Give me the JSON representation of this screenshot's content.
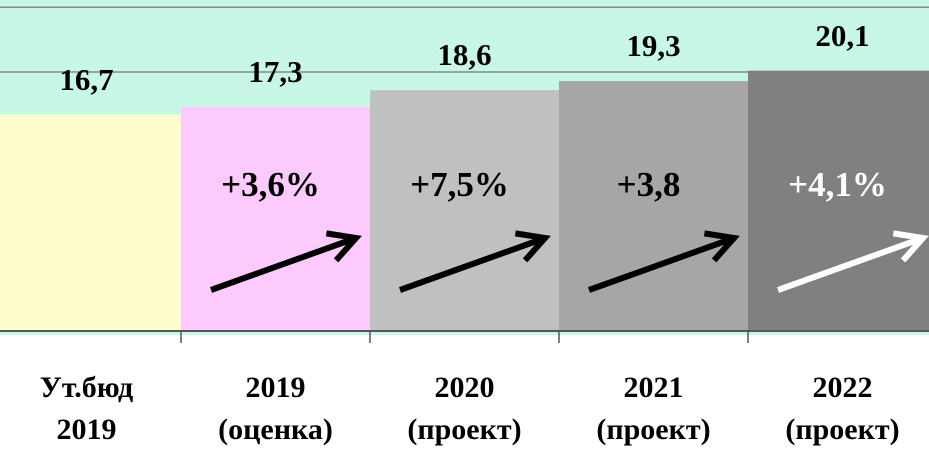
{
  "chart_data": {
    "type": "bar",
    "categories": [
      "Ут.бюд\n2019",
      "2019\n(оценка)",
      "2020\n(проект)",
      "2021\n(проект)",
      "2022\n(проект)"
    ],
    "values": [
      16.7,
      17.3,
      18.6,
      19.3,
      20.1
    ],
    "value_labels": [
      "16,7",
      "17,3",
      "18,6",
      "19,3",
      "20,1"
    ],
    "colors": [
      "#fdfccc",
      "#fccafc",
      "#c0c0c0",
      "#a6a6a6",
      "#808080"
    ],
    "annotations": [
      null,
      "+3,6%",
      "+7,5%",
      "+3,8",
      "+4,1%"
    ],
    "annotation_colors": [
      null,
      "#000000",
      "#000000",
      "#000000",
      "#ffffff"
    ],
    "ylim": [
      0,
      25
    ],
    "yticks": [
      20,
      25
    ],
    "grid": true
  }
}
